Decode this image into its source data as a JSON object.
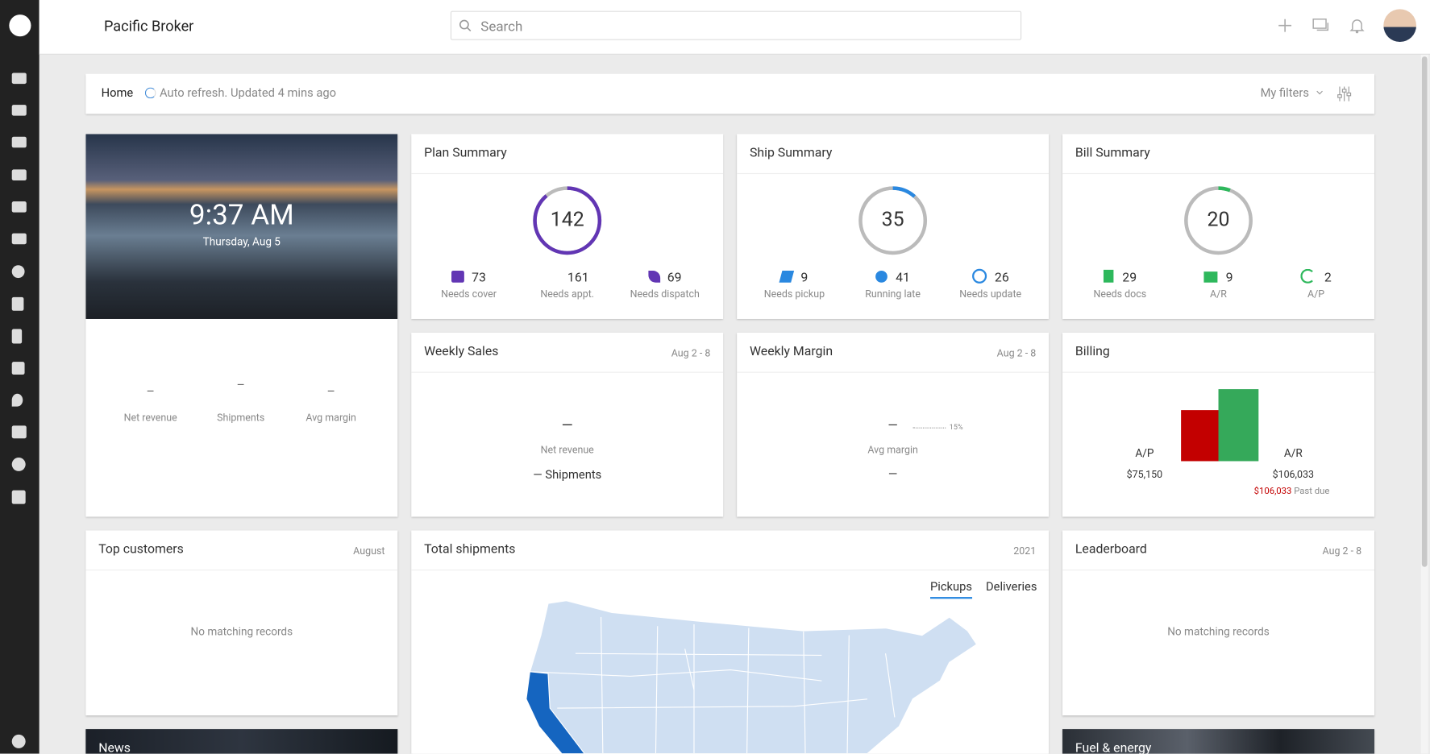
{
  "header": {
    "brand": "Pacific Broker",
    "search_placeholder": "Search"
  },
  "toolbar": {
    "home": "Home",
    "refresh": "Auto refresh. Updated 4 mins ago",
    "filters": "My filters"
  },
  "clock": {
    "time": "9:37 AM",
    "date": "Thursday, Aug 5",
    "stats": [
      {
        "value": "–",
        "label": "Net revenue"
      },
      {
        "value": "–",
        "label": "Shipments"
      },
      {
        "value": "–",
        "label": "Avg margin"
      }
    ]
  },
  "plan_summary": {
    "title": "Plan Summary",
    "total": 142,
    "items": [
      {
        "value": 73,
        "label": "Needs cover"
      },
      {
        "value": 161,
        "label": "Needs appt."
      },
      {
        "value": 69,
        "label": "Needs dispatch"
      }
    ]
  },
  "ship_summary": {
    "title": "Ship Summary",
    "total": 35,
    "items": [
      {
        "value": 9,
        "label": "Needs pickup"
      },
      {
        "value": 41,
        "label": "Running late"
      },
      {
        "value": 26,
        "label": "Needs update"
      }
    ]
  },
  "bill_summary": {
    "title": "Bill Summary",
    "total": 20,
    "items": [
      {
        "value": 29,
        "label": "Needs docs"
      },
      {
        "value": 9,
        "label": "A/R"
      },
      {
        "value": 2,
        "label": "A/P"
      }
    ]
  },
  "weekly_sales": {
    "title": "Weekly Sales",
    "range": "Aug 2 - 8",
    "value": "—",
    "label": "Net revenue",
    "shipments": "— Shipments"
  },
  "weekly_margin": {
    "title": "Weekly Margin",
    "range": "Aug 2 - 8",
    "value": "—",
    "target": "15%",
    "label": "Avg margin",
    "secondary": "—"
  },
  "billing": {
    "title": "Billing",
    "ap": {
      "label": "A/P",
      "amount": "$75,150"
    },
    "ar": {
      "label": "A/R",
      "amount": "$106,033",
      "past_due_amount": "$106,033",
      "past_due_label": "Past due"
    }
  },
  "top_customers": {
    "title": "Top customers",
    "period": "August",
    "empty": "No matching records"
  },
  "total_shipments": {
    "title": "Total shipments",
    "year": "2021",
    "tabs": [
      "Pickups",
      "Deliveries"
    ]
  },
  "leaderboard": {
    "title": "Leaderboard",
    "range": "Aug 2 - 8",
    "empty": "No matching records"
  },
  "news": {
    "title": "News"
  },
  "fuel": {
    "title": "Fuel & energy"
  }
}
